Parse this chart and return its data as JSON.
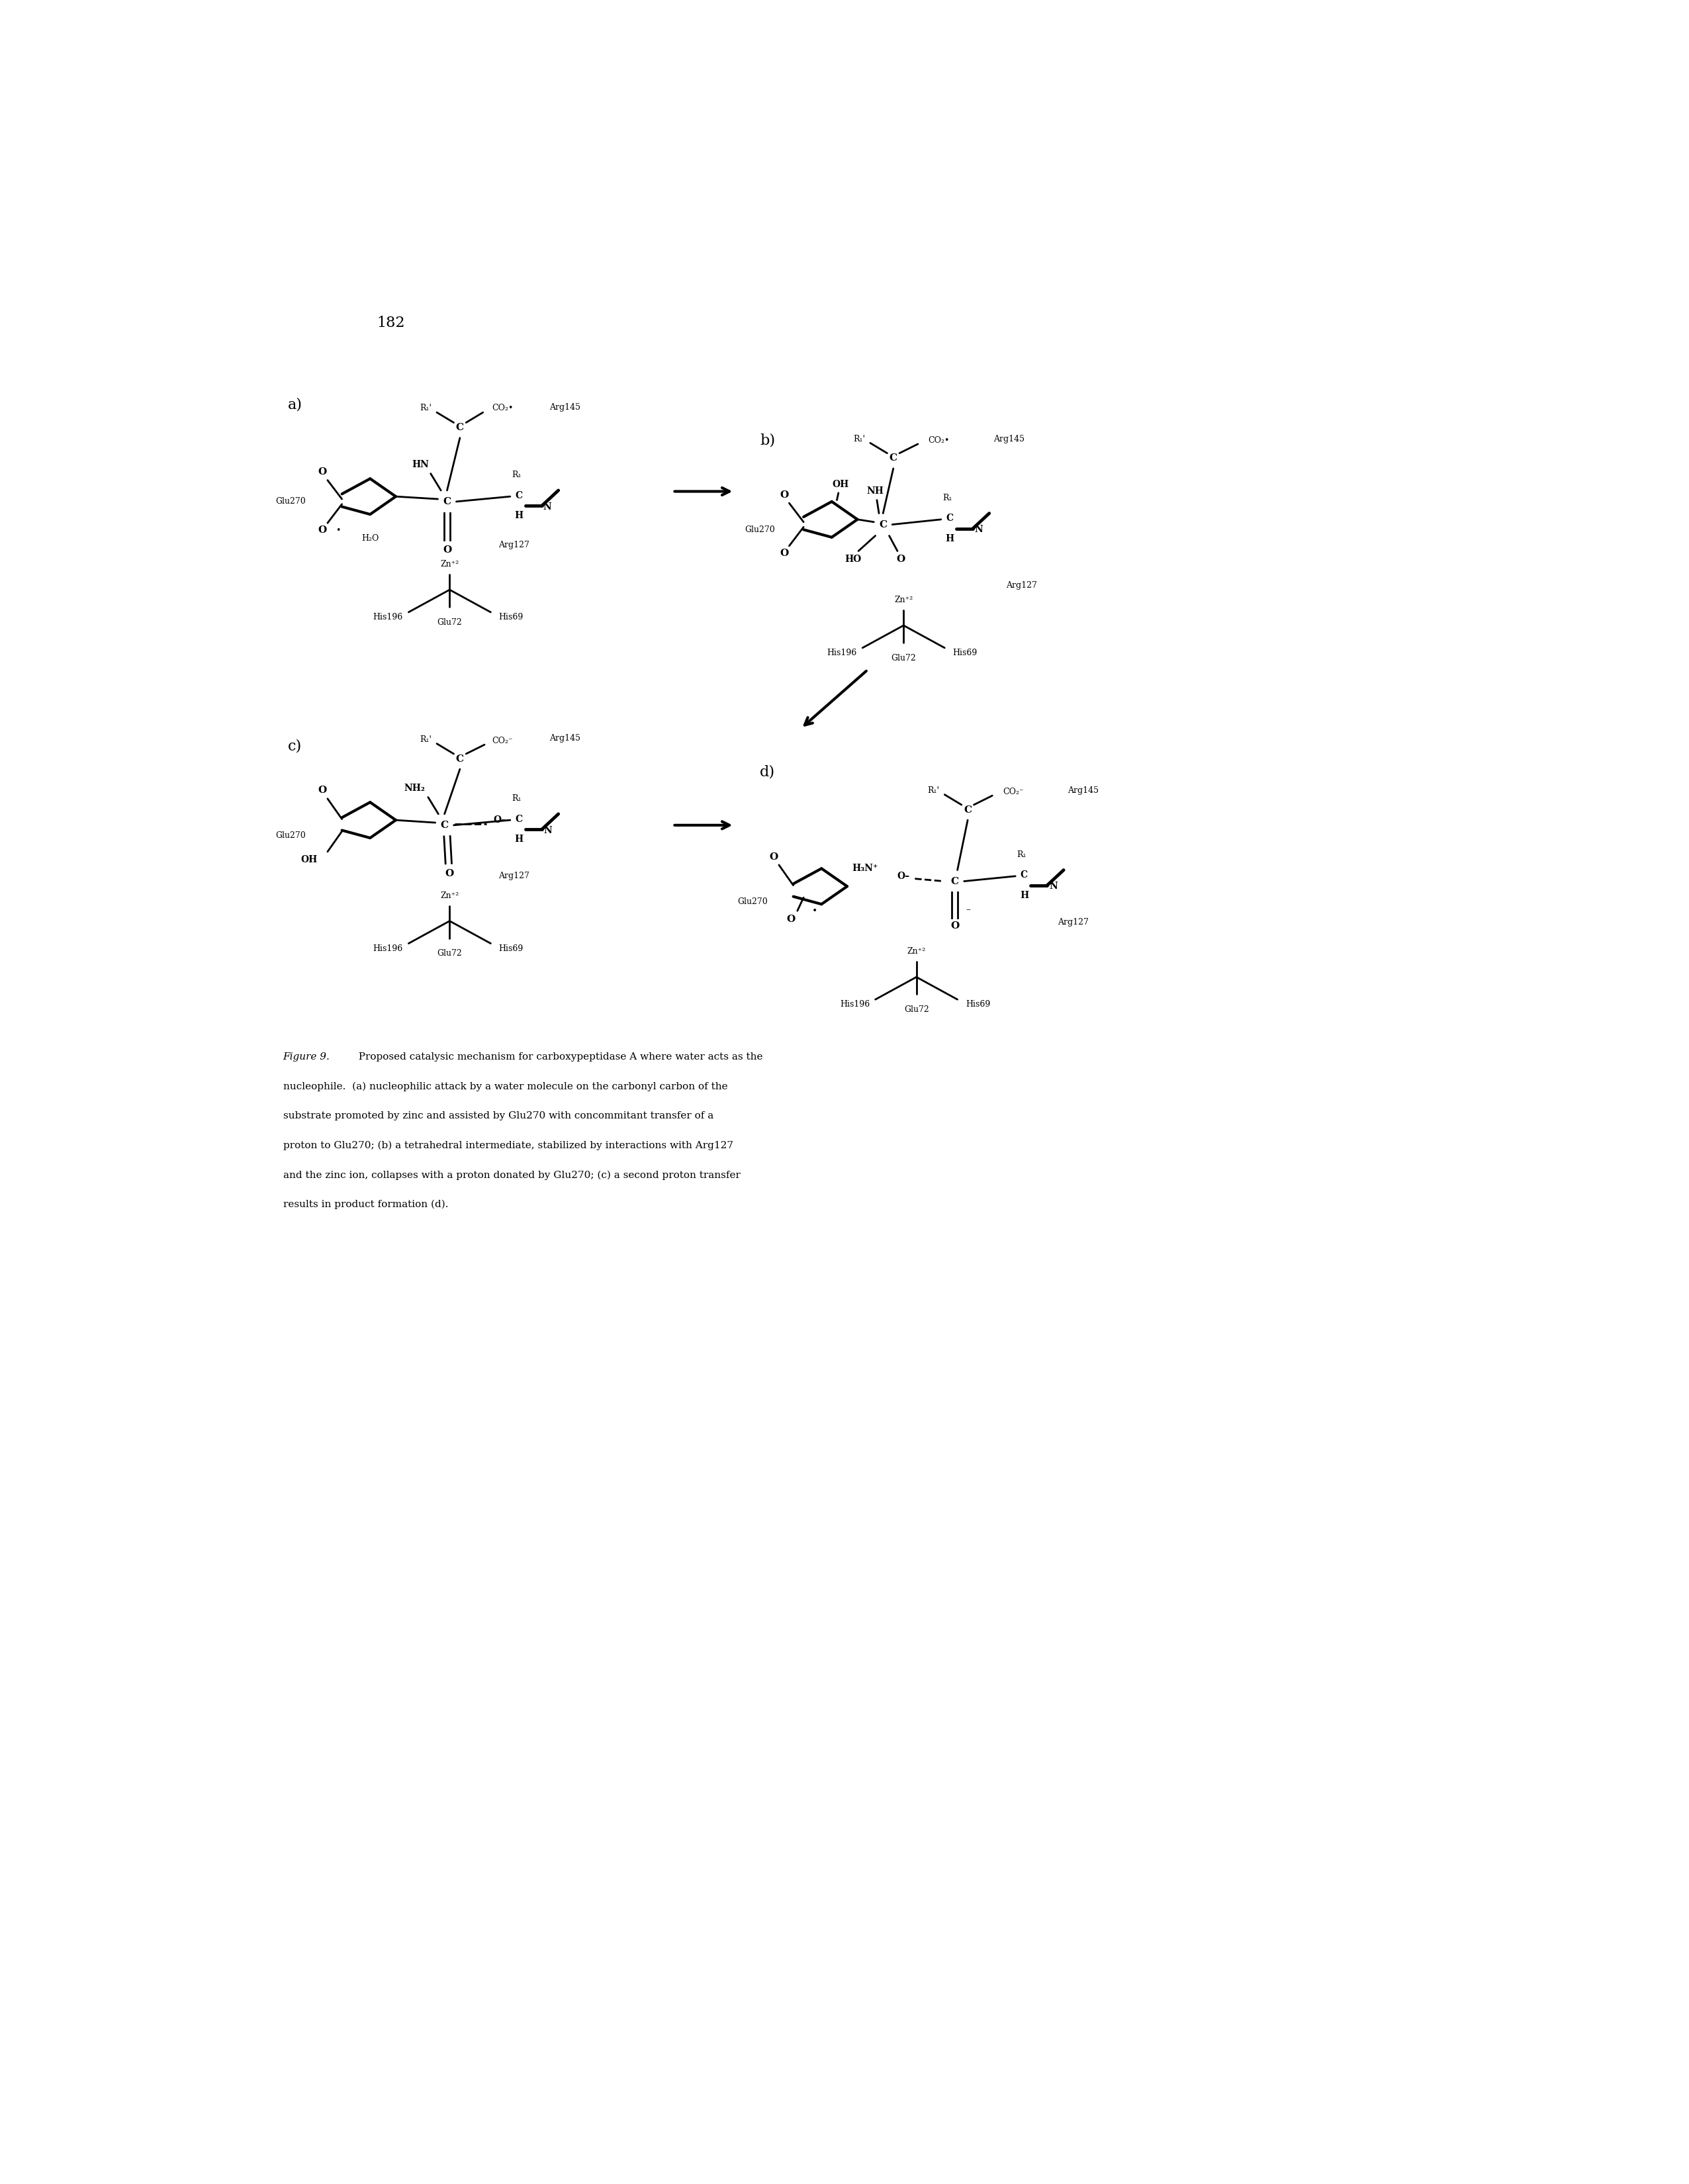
{
  "page_number": "182",
  "background_color": "#ffffff",
  "text_color": "#000000",
  "figure_caption_italic": "Figure 9.",
  "figure_caption_rest": "  Proposed catalysic mechanism for carboxypeptidase A where water acts as the nucleophile.  (a) nucleophilic attack by a water molecule on the carbonyl carbon of the substrate promoted by zinc and assisted by Glu270 with concommitant transfer of a proton to Glu270; (b) a tetrahedral intermediate, stabilized by interactions with Arg127 and the zinc ion, collapses with a proton donated by Glu270; (c) a second proton transfer results in product formation (d).",
  "panel_labels": [
    "a)",
    "b)",
    "c)",
    "d)"
  ]
}
